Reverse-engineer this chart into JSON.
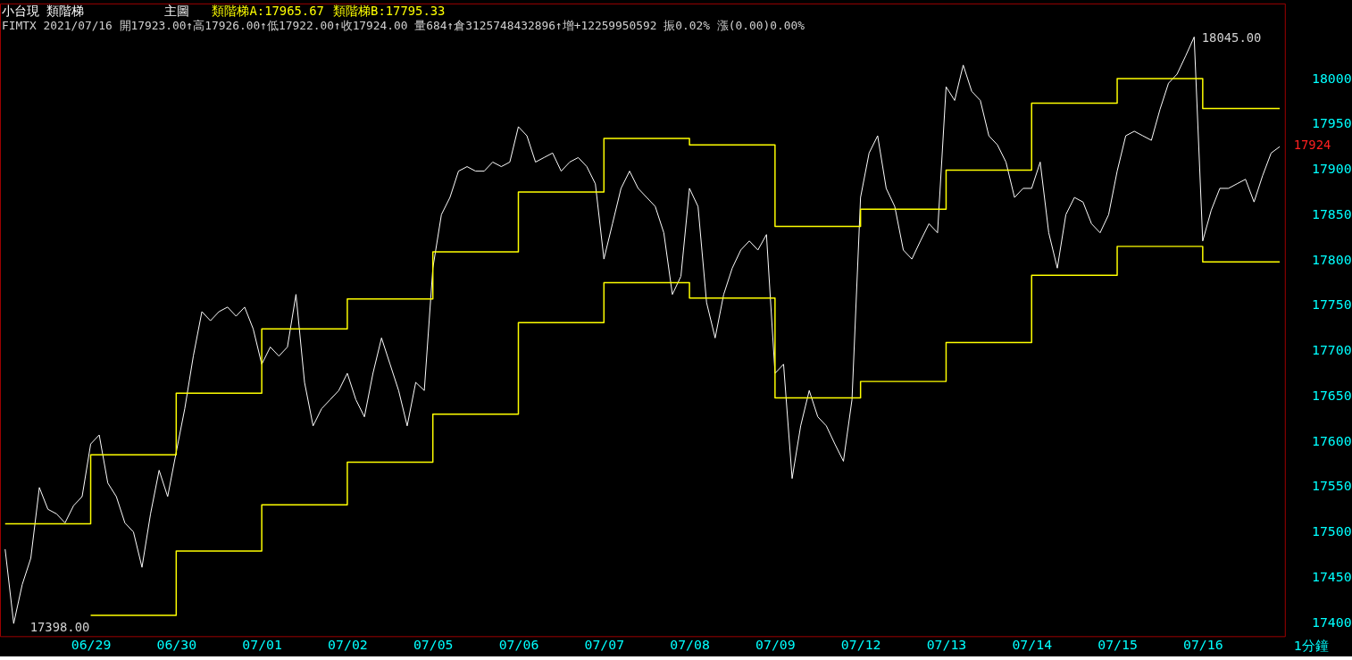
{
  "chart_data": {
    "type": "line",
    "title": "小台現 類階梯",
    "xlabel": "1分鐘",
    "annotations": [
      "主圖",
      "類階梯A:17965.67",
      "類階梯B:17795.33",
      "FIMTX 2021/07/16 開17923.00↑高17926.00↑低17922.00↑收17924.00 量684↑倉3125748432896↑增+12259950592 振0.02% 漲(0.00)0.00%",
      "18045.00",
      "17398.00",
      "17924"
    ],
    "categories": [
      null,
      null,
      null,
      null,
      null,
      null,
      null,
      null,
      null,
      null,
      "06/29",
      null,
      null,
      null,
      null,
      null,
      null,
      null,
      null,
      null,
      "06/30",
      null,
      null,
      null,
      null,
      null,
      null,
      null,
      null,
      null,
      "07/01",
      null,
      null,
      null,
      null,
      null,
      null,
      null,
      null,
      null,
      "07/02",
      null,
      null,
      null,
      null,
      null,
      null,
      null,
      null,
      null,
      "07/05",
      null,
      null,
      null,
      null,
      null,
      null,
      null,
      null,
      null,
      "07/06",
      null,
      null,
      null,
      null,
      null,
      null,
      null,
      null,
      null,
      "07/07",
      null,
      null,
      null,
      null,
      null,
      null,
      null,
      null,
      null,
      "07/08",
      null,
      null,
      null,
      null,
      null,
      null,
      null,
      null,
      null,
      "07/09",
      null,
      null,
      null,
      null,
      null,
      null,
      null,
      null,
      null,
      "07/12",
      null,
      null,
      null,
      null,
      null,
      null,
      null,
      null,
      null,
      "07/13",
      null,
      null,
      null,
      null,
      null,
      null,
      null,
      null,
      null,
      "07/14",
      null,
      null,
      null,
      null,
      null,
      null,
      null,
      null,
      null,
      "07/15",
      null,
      null,
      null,
      null,
      null,
      null,
      null,
      null,
      null,
      "07/16",
      null,
      null,
      null,
      null,
      null,
      null,
      null,
      null,
      null
    ],
    "ylim": [
      17384,
      18082
    ],
    "yticks": [
      17400,
      17450,
      17500,
      17550,
      17600,
      17650,
      17700,
      17750,
      17800,
      17850,
      17900,
      17950,
      18000
    ],
    "grid": false,
    "series": [
      {
        "color": "#ffffff",
        "values": [
          17480,
          17398,
          17441,
          17470,
          17548,
          17524,
          17519,
          17509,
          17528,
          17538,
          17596,
          17606,
          17553,
          17538,
          17509,
          17499,
          17460,
          17519,
          17567,
          17538,
          17587,
          17635,
          17693,
          17742,
          17732,
          17742,
          17747,
          17737,
          17747,
          17723,
          17684,
          17703,
          17693,
          17703,
          17761,
          17664,
          17616,
          17635,
          17645,
          17655,
          17674,
          17645,
          17626,
          17674,
          17713,
          17684,
          17655,
          17616,
          17664,
          17655,
          17790,
          17849,
          17868,
          17897,
          17902,
          17897,
          17897,
          17907,
          17902,
          17907,
          17946,
          17936,
          17907,
          17912,
          17917,
          17897,
          17907,
          17912,
          17902,
          17883,
          17800,
          17839,
          17878,
          17897,
          17878,
          17868,
          17858,
          17829,
          17761,
          17781,
          17878,
          17858,
          17752,
          17713,
          17761,
          17790,
          17810,
          17820,
          17810,
          17827,
          17674,
          17684,
          17558,
          17616,
          17655,
          17626,
          17616,
          17596,
          17577,
          17645,
          17868,
          17917,
          17936,
          17878,
          17858,
          17810,
          17800,
          17820,
          17839,
          17829,
          17990,
          17975,
          18014,
          17985,
          17975,
          17936,
          17926,
          17907,
          17868,
          17878,
          17878,
          17907,
          17829,
          17790,
          17849,
          17868,
          17863,
          17839,
          17829,
          17849,
          17897,
          17936,
          17941,
          17936,
          17931,
          17965,
          17994,
          18004,
          18024,
          18045,
          17820,
          17854,
          17878,
          17878,
          17883,
          17888,
          17863,
          17892,
          17917,
          17924
        ]
      },
      {
        "type": "step",
        "color": "#ffff00",
        "values": [
          17508,
          17508,
          17508,
          17508,
          17508,
          17508,
          17508,
          17508,
          17508,
          17508,
          17584,
          17584,
          17584,
          17584,
          17584,
          17584,
          17584,
          17584,
          17584,
          17584,
          17652,
          17652,
          17652,
          17652,
          17652,
          17652,
          17652,
          17652,
          17652,
          17652,
          17723,
          17723,
          17723,
          17723,
          17723,
          17723,
          17723,
          17723,
          17723,
          17723,
          17756,
          17756,
          17756,
          17756,
          17756,
          17756,
          17756,
          17756,
          17756,
          17756,
          17808,
          17808,
          17808,
          17808,
          17808,
          17808,
          17808,
          17808,
          17808,
          17808,
          17874,
          17874,
          17874,
          17874,
          17874,
          17874,
          17874,
          17874,
          17874,
          17874,
          17933,
          17933,
          17933,
          17933,
          17933,
          17933,
          17933,
          17933,
          17933,
          17933,
          17926,
          17926,
          17926,
          17926,
          17926,
          17926,
          17926,
          17926,
          17926,
          17926,
          17836,
          17836,
          17836,
          17836,
          17836,
          17836,
          17836,
          17836,
          17836,
          17836,
          17855,
          17855,
          17855,
          17855,
          17855,
          17855,
          17855,
          17855,
          17855,
          17855,
          17898,
          17898,
          17898,
          17898,
          17898,
          17898,
          17898,
          17898,
          17898,
          17898,
          17972,
          17972,
          17972,
          17972,
          17972,
          17972,
          17972,
          17972,
          17972,
          17972,
          17999,
          17999,
          17999,
          17999,
          17999,
          17999,
          17999,
          17999,
          17999,
          17999,
          17966,
          17966,
          17966,
          17966,
          17966,
          17966,
          17966,
          17966,
          17966,
          17966
        ]
      },
      {
        "type": "step",
        "color": "#ffff00",
        "values": [
          null,
          null,
          null,
          null,
          null,
          null,
          null,
          null,
          null,
          null,
          17407,
          17407,
          17407,
          17407,
          17407,
          17407,
          17407,
          17407,
          17407,
          17407,
          17478,
          17478,
          17478,
          17478,
          17478,
          17478,
          17478,
          17478,
          17478,
          17478,
          17529,
          17529,
          17529,
          17529,
          17529,
          17529,
          17529,
          17529,
          17529,
          17529,
          17576,
          17576,
          17576,
          17576,
          17576,
          17576,
          17576,
          17576,
          17576,
          17576,
          17629,
          17629,
          17629,
          17629,
          17629,
          17629,
          17629,
          17629,
          17629,
          17629,
          17730,
          17730,
          17730,
          17730,
          17730,
          17730,
          17730,
          17730,
          17730,
          17730,
          17774,
          17774,
          17774,
          17774,
          17774,
          17774,
          17774,
          17774,
          17774,
          17774,
          17757,
          17757,
          17757,
          17757,
          17757,
          17757,
          17757,
          17757,
          17757,
          17757,
          17647,
          17647,
          17647,
          17647,
          17647,
          17647,
          17647,
          17647,
          17647,
          17647,
          17665,
          17665,
          17665,
          17665,
          17665,
          17665,
          17665,
          17665,
          17665,
          17665,
          17708,
          17708,
          17708,
          17708,
          17708,
          17708,
          17708,
          17708,
          17708,
          17708,
          17782,
          17782,
          17782,
          17782,
          17782,
          17782,
          17782,
          17782,
          17782,
          17782,
          17814,
          17814,
          17814,
          17814,
          17814,
          17814,
          17814,
          17814,
          17814,
          17814,
          17797,
          17797,
          17797,
          17797,
          17797,
          17797,
          17797,
          17797,
          17797,
          17797
        ]
      }
    ]
  }
}
